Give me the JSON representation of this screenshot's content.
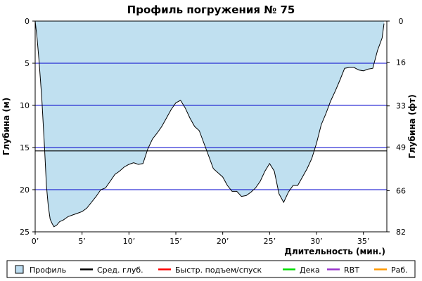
{
  "chart_data": {
    "type": "area",
    "title": "Профиль погружения № 75",
    "xlabel": "Длительность (мин.)",
    "ylabel": "Глубина (м)",
    "ylabel_right": "Глубина (фт)",
    "xlim": [
      0,
      37.5
    ],
    "ylim": [
      0,
      25
    ],
    "y_inverted": true,
    "grid": "horizontal",
    "x_ticks": [
      {
        "value": 0,
        "label": "0’"
      },
      {
        "value": 5,
        "label": "5’"
      },
      {
        "value": 10,
        "label": "10’"
      },
      {
        "value": 15,
        "label": "15’"
      },
      {
        "value": 20,
        "label": "20’"
      },
      {
        "value": 25,
        "label": "25’"
      },
      {
        "value": 30,
        "label": "30’"
      },
      {
        "value": 35,
        "label": "35’"
      }
    ],
    "y_ticks": [
      {
        "value": 0,
        "label": "0"
      },
      {
        "value": 5,
        "label": "5"
      },
      {
        "value": 10,
        "label": "10"
      },
      {
        "value": 15,
        "label": "15"
      },
      {
        "value": 20,
        "label": "20"
      },
      {
        "value": 25,
        "label": "25"
      }
    ],
    "y_ticks_right": [
      {
        "value": 0,
        "label": "0"
      },
      {
        "value": 4.88,
        "label": "16"
      },
      {
        "value": 10.06,
        "label": "33"
      },
      {
        "value": 14.94,
        "label": "49"
      },
      {
        "value": 20.12,
        "label": "66"
      },
      {
        "value": 25,
        "label": "82"
      }
    ],
    "average_depth": 15.4,
    "series": [
      {
        "name": "Профиль",
        "color": "#c0e0f0",
        "x": [
          0,
          0.2,
          0.4,
          0.7,
          1.0,
          1.2,
          1.4,
          1.6,
          1.8,
          2.0,
          2.3,
          2.6,
          3.0,
          3.5,
          4.0,
          4.5,
          5.0,
          5.5,
          6.0,
          6.5,
          7.0,
          7.5,
          8.0,
          8.5,
          9.0,
          9.5,
          10.0,
          10.5,
          11.0,
          11.5,
          12.0,
          12.5,
          13.0,
          13.5,
          14.0,
          14.5,
          15.0,
          15.5,
          16.0,
          16.5,
          17.0,
          17.5,
          18.0,
          18.5,
          19.0,
          19.5,
          20.0,
          20.5,
          21.0,
          21.5,
          22.0,
          22.5,
          23.0,
          23.5,
          24.0,
          24.5,
          25.0,
          25.5,
          26.0,
          26.5,
          27.0,
          27.5,
          28.0,
          28.5,
          29.0,
          29.5,
          30.0,
          30.5,
          31.0,
          31.5,
          32.0,
          32.5,
          33.0,
          33.5,
          34.0,
          34.5,
          35.0,
          35.5,
          36.0,
          36.5,
          37.0,
          37.2
        ],
        "values": [
          0,
          2.0,
          4.5,
          9.0,
          15.0,
          19.5,
          22.0,
          23.5,
          24.0,
          24.4,
          24.2,
          23.8,
          23.6,
          23.2,
          23.0,
          22.8,
          22.6,
          22.2,
          21.5,
          20.8,
          20.0,
          19.8,
          19.0,
          18.2,
          17.8,
          17.3,
          17.0,
          16.8,
          17.0,
          16.9,
          15.2,
          14.0,
          13.3,
          12.5,
          11.5,
          10.5,
          9.7,
          9.4,
          10.3,
          11.5,
          12.5,
          13.0,
          14.5,
          16.0,
          17.5,
          18.0,
          18.5,
          19.5,
          20.2,
          20.2,
          20.8,
          20.7,
          20.3,
          19.8,
          19.0,
          17.8,
          16.9,
          17.8,
          20.5,
          21.5,
          20.3,
          19.5,
          19.5,
          18.5,
          17.5,
          16.3,
          14.5,
          12.3,
          11.0,
          9.5,
          8.3,
          7.0,
          5.6,
          5.5,
          5.5,
          5.8,
          5.9,
          5.7,
          5.6,
          3.5,
          2.0,
          0.3
        ]
      }
    ],
    "legend": {
      "placement": "bottom",
      "items": [
        {
          "label": "Профиль",
          "color": "#bcdcf0",
          "type": "box"
        },
        {
          "label": "Сред. глуб.",
          "color": "#000000",
          "type": "line"
        },
        {
          "label": "Быстр. подъем/спуск",
          "color": "#ff0000",
          "type": "line"
        },
        {
          "label": "Дека",
          "color": "#00dd00",
          "type": "line"
        },
        {
          "label": "RBT",
          "color": "#9933cc",
          "type": "line"
        },
        {
          "label": "Раб.",
          "color": "#ff9900",
          "type": "line"
        }
      ]
    },
    "colors": {
      "grid": "#0000cc",
      "avg_line": "#000000",
      "profile_stroke": "#000000"
    }
  }
}
